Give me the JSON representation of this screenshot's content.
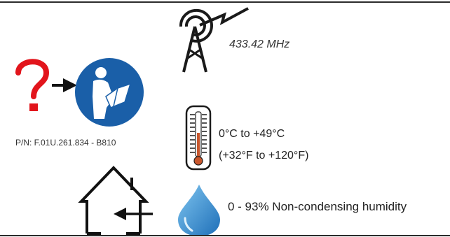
{
  "antenna": {
    "icon": "radio-antenna-icon",
    "frequency": "433.42 MHz"
  },
  "manual": {
    "question_icon": "question-mark-icon",
    "arrow_icon": "arrow-right-icon",
    "read_icon": "read-manual-icon",
    "part_number": "P/N: F.01U.261.834 - B810",
    "colors": {
      "question": "#e2151c",
      "manual_blue": "#1a5fa8"
    }
  },
  "temperature": {
    "icon": "thermometer-icon",
    "celsius": "0°C to +49°C",
    "fahrenheit": "(+32°F to +120°F)",
    "colors": {
      "mercury": "#c8572d"
    }
  },
  "environment": {
    "icon": "indoor-house-icon",
    "arrow_icon": "arrow-left-icon"
  },
  "humidity": {
    "icon": "water-drop-icon",
    "text": "0 - 93% Non-condensing humidity",
    "colors": {
      "drop": "#3b9ad9"
    }
  }
}
